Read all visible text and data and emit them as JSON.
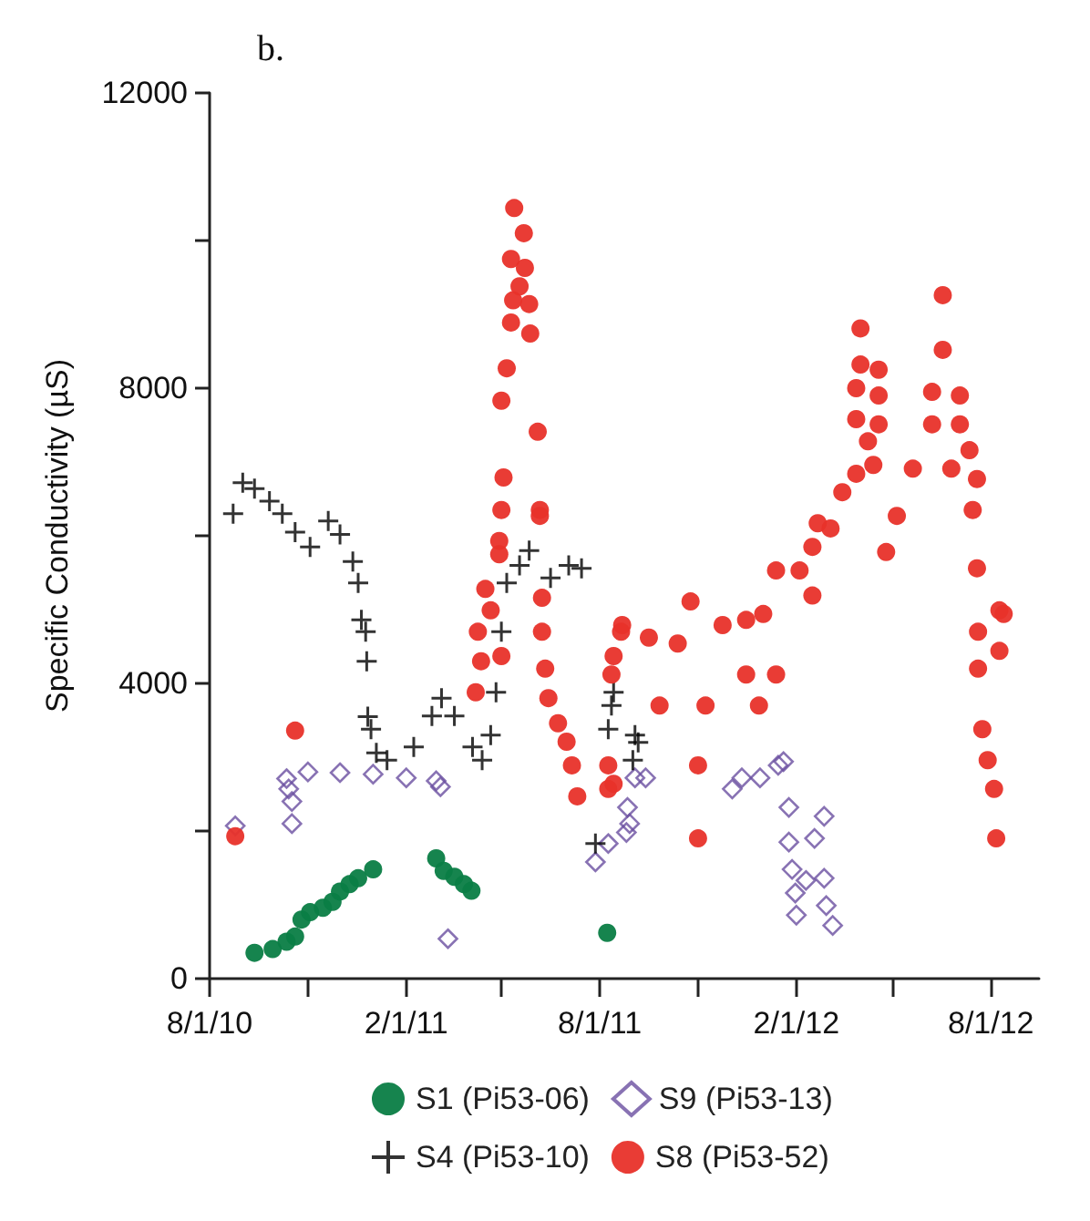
{
  "chart_data": {
    "type": "scatter",
    "title": "b.",
    "ylabel": "Specific Conductivity (µS)",
    "xlim": [
      "2010-08-01",
      "2012-09-15"
    ],
    "xticks": [
      {
        "value": "2010-08-01",
        "label": "8/1/10"
      },
      {
        "value": "2010-11-01",
        "label": null
      },
      {
        "value": "2011-02-01",
        "label": "2/1/11"
      },
      {
        "value": "2011-05-01",
        "label": null
      },
      {
        "value": "2011-08-01",
        "label": "8/1/11"
      },
      {
        "value": "2011-11-01",
        "label": null
      },
      {
        "value": "2012-02-01",
        "label": "2/1/12"
      },
      {
        "value": "2012-05-01",
        "label": null
      },
      {
        "value": "2012-08-01",
        "label": "8/1/12"
      }
    ],
    "ylim": [
      0,
      12000
    ],
    "yticks": [
      0,
      {
        "value": 2000,
        "label": null
      },
      4000,
      {
        "value": 6000,
        "label": null
      },
      8000,
      {
        "value": 10000,
        "label": null
      },
      12000
    ],
    "grid": false,
    "legend": "bottom",
    "series": [
      {
        "name": "S1 (Pi53-06)",
        "color": "#0a7d45",
        "marker": "circle",
        "x": [
          "2010-09-12",
          "2010-09-29",
          "2010-10-12",
          "2010-10-20",
          "2010-10-26",
          "2010-11-03",
          "2010-11-15",
          "2010-11-24",
          "2010-12-01",
          "2010-12-10",
          "2010-12-18",
          "2011-01-01",
          "2011-03-01",
          "2011-03-08",
          "2011-03-18",
          "2011-03-27",
          "2011-04-03",
          "2011-08-08"
        ],
        "values": [
          350,
          400,
          500,
          570,
          800,
          900,
          960,
          1040,
          1180,
          1280,
          1360,
          1480,
          1630,
          1460,
          1380,
          1280,
          1190,
          620
        ]
      },
      {
        "name": "S9 (Pi53-13)",
        "color": "#6a4fa0",
        "marker": "diamond",
        "x": [
          "2010-08-25",
          "2010-10-12",
          "2010-10-14",
          "2010-10-17",
          "2010-10-17",
          "2010-11-01",
          "2010-12-01",
          "2011-01-01",
          "2011-02-01",
          "2011-03-01",
          "2011-03-05",
          "2011-03-12",
          "2011-07-28",
          "2011-08-09",
          "2011-08-26",
          "2011-08-29",
          "2011-08-27",
          "2011-09-03",
          "2011-09-13",
          "2011-12-03",
          "2011-12-12",
          "2011-12-29",
          "2012-01-15",
          "2012-01-20",
          "2012-01-25",
          "2012-01-25",
          "2012-01-28",
          "2012-01-31",
          "2012-02-01",
          "2012-02-10",
          "2012-02-18",
          "2012-02-27",
          "2012-02-27",
          "2012-02-29",
          "2012-03-06"
        ],
        "values": [
          2070,
          2710,
          2570,
          2400,
          2100,
          2800,
          2790,
          2770,
          2720,
          2680,
          2600,
          540,
          1580,
          1830,
          1980,
          2100,
          2320,
          2720,
          2720,
          2570,
          2720,
          2720,
          2890,
          2940,
          2320,
          1850,
          1480,
          1160,
          860,
          1330,
          1900,
          2200,
          1360,
          990,
          720
        ]
      },
      {
        "name": "S4 (Pi53-10)",
        "color": "#000000",
        "marker": "cross",
        "x": [
          "2010-08-23",
          "2010-09-01",
          "2010-09-12",
          "2010-09-26",
          "2010-10-08",
          "2010-10-20",
          "2010-11-03",
          "2010-11-20",
          "2010-12-01",
          "2010-12-13",
          "2010-12-18",
          "2010-12-21",
          "2010-12-25",
          "2010-12-26",
          "2010-12-27",
          "2010-12-30",
          "2011-01-04",
          "2011-01-14",
          "2011-02-08",
          "2011-02-25",
          "2011-03-06",
          "2011-03-18",
          "2011-04-04",
          "2011-04-13",
          "2011-04-21",
          "2011-04-26",
          "2011-05-01",
          "2011-05-06",
          "2011-05-18",
          "2011-05-27",
          "2011-06-16",
          "2011-07-03",
          "2011-07-15",
          "2011-07-28",
          "2011-08-09",
          "2011-08-12",
          "2011-08-14",
          "2011-09-01",
          "2011-09-03",
          "2011-09-06"
        ],
        "values": [
          6300,
          6720,
          6640,
          6470,
          6300,
          6050,
          5850,
          6200,
          6020,
          5650,
          5360,
          4860,
          4700,
          4300,
          3550,
          3380,
          3060,
          2960,
          3140,
          3560,
          3800,
          3560,
          3140,
          2960,
          3300,
          3880,
          4700,
          5360,
          5600,
          5800,
          5430,
          5600,
          5560,
          1830,
          3380,
          3700,
          3880,
          2960,
          3300,
          3200
        ]
      },
      {
        "name": "S8 (Pi53-52)",
        "color": "#e8312a",
        "marker": "circle",
        "x": [
          "2010-08-25",
          "2010-10-20",
          "2011-04-07",
          "2011-04-09",
          "2011-04-12",
          "2011-04-16",
          "2011-04-21",
          "2011-04-29",
          "2011-04-29",
          "2011-05-01",
          "2011-05-01",
          "2011-05-01",
          "2011-05-03",
          "2011-05-06",
          "2011-05-10",
          "2011-05-10",
          "2011-05-12",
          "2011-05-13",
          "2011-05-18",
          "2011-05-22",
          "2011-05-23",
          "2011-05-27",
          "2011-05-28",
          "2011-06-04",
          "2011-06-06",
          "2011-06-06",
          "2011-06-08",
          "2011-06-08",
          "2011-06-11",
          "2011-06-14",
          "2011-06-23",
          "2011-07-01",
          "2011-07-06",
          "2011-07-11",
          "2011-08-09",
          "2011-08-09",
          "2011-08-12",
          "2011-08-14",
          "2011-08-14",
          "2011-08-21",
          "2011-08-22",
          "2011-09-16",
          "2011-09-26",
          "2011-10-13",
          "2011-10-25",
          "2011-11-01",
          "2011-11-01",
          "2011-11-08",
          "2011-11-24",
          "2011-12-16",
          "2011-12-16",
          "2011-12-28",
          "2012-01-01",
          "2012-01-13",
          "2012-01-13",
          "2012-02-04",
          "2012-02-16",
          "2012-02-16",
          "2012-02-21",
          "2012-03-04",
          "2012-03-15",
          "2012-03-28",
          "2012-03-28",
          "2012-03-28",
          "2012-04-01",
          "2012-04-01",
          "2012-04-08",
          "2012-04-13",
          "2012-04-18",
          "2012-04-18",
          "2012-04-18",
          "2012-04-25",
          "2012-05-05",
          "2012-05-20",
          "2012-06-07",
          "2012-06-07",
          "2012-06-17",
          "2012-06-17",
          "2012-06-25",
          "2012-07-03",
          "2012-07-03",
          "2012-07-12",
          "2012-07-15",
          "2012-07-19",
          "2012-07-19",
          "2012-07-20",
          "2012-07-20",
          "2012-07-24",
          "2012-07-29",
          "2012-08-04",
          "2012-08-06",
          "2012-08-09",
          "2012-08-09",
          "2012-08-13"
        ],
        "values": [
          1930,
          3360,
          3880,
          4700,
          4300,
          5280,
          4990,
          5930,
          5750,
          4370,
          7830,
          6350,
          6790,
          8270,
          9750,
          8890,
          9190,
          10440,
          9380,
          10100,
          9630,
          9140,
          8740,
          7410,
          6350,
          6270,
          5160,
          4700,
          4200,
          3800,
          3460,
          3210,
          2890,
          2470,
          2890,
          2570,
          4120,
          4370,
          2640,
          4700,
          4790,
          4620,
          3700,
          4540,
          5110,
          2890,
          1900,
          3700,
          4790,
          4860,
          4120,
          3700,
          4940,
          4120,
          5530,
          5530,
          5190,
          5850,
          6170,
          6100,
          6590,
          8000,
          7580,
          6840,
          8810,
          8320,
          7280,
          6960,
          8250,
          7900,
          7510,
          5780,
          6270,
          6910,
          7950,
          7510,
          9260,
          8520,
          6910,
          7900,
          7510,
          7160,
          6350,
          6770,
          5560,
          4700,
          4200,
          3380,
          2960,
          2570,
          1900,
          4990,
          4440,
          4940
        ]
      }
    ]
  }
}
